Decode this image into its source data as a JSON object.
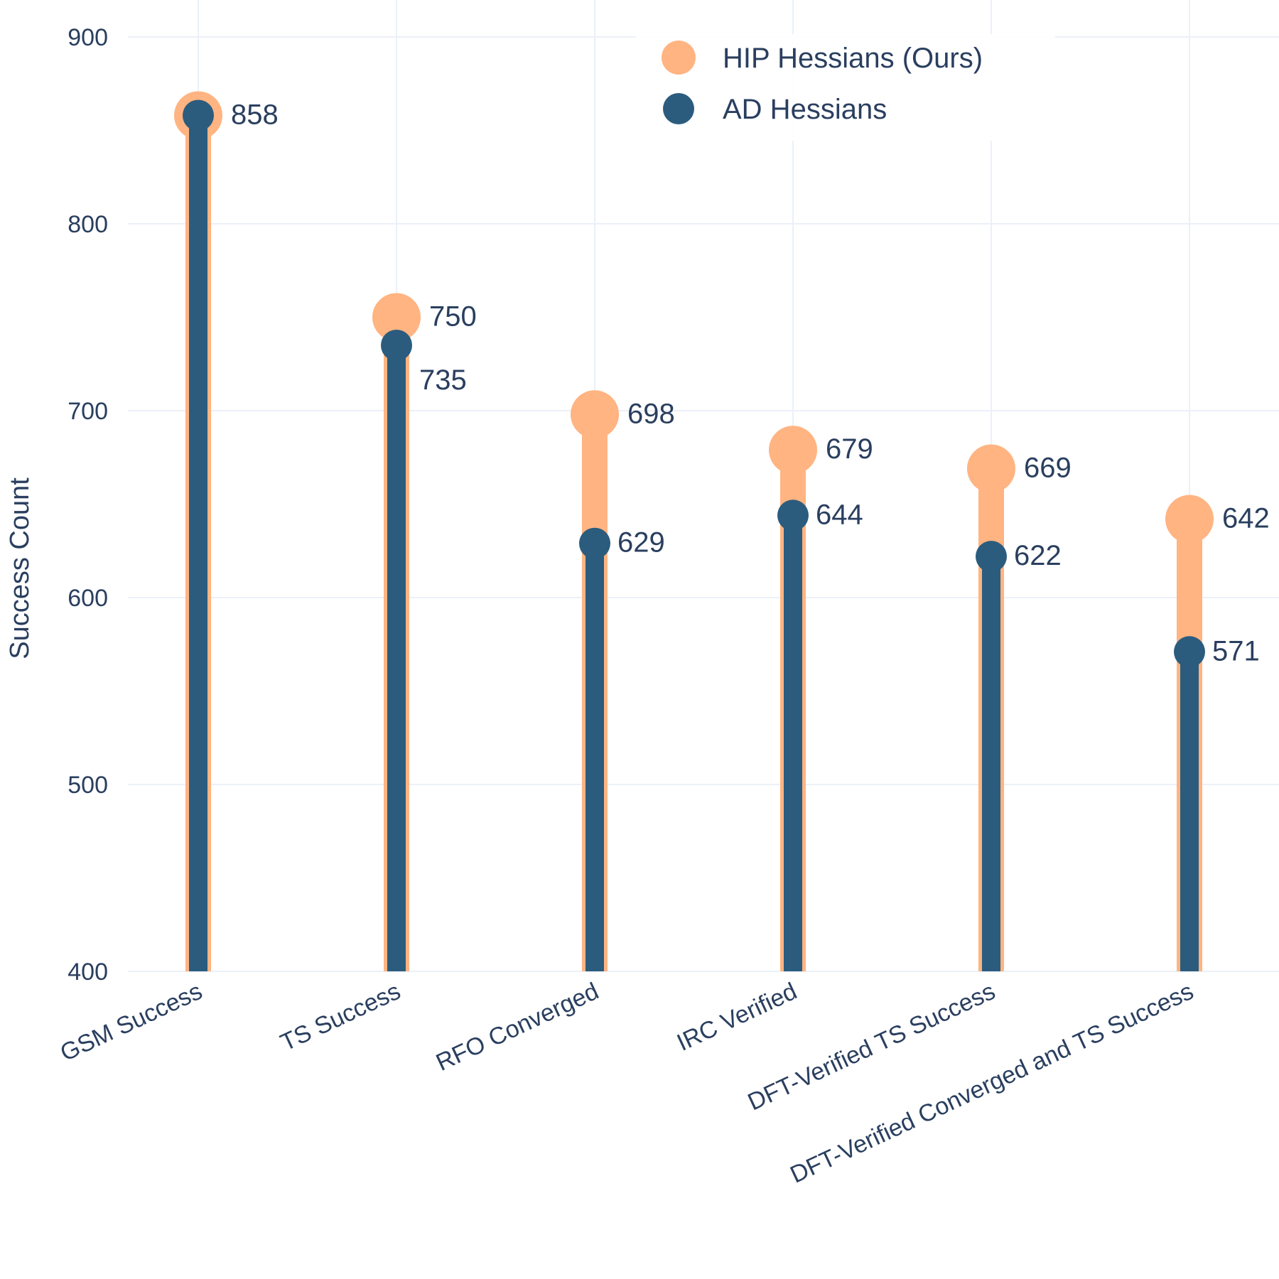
{
  "chart_data": {
    "type": "lollipop",
    "ylabel": "Success Count",
    "ylim": [
      400,
      900
    ],
    "yticks": [
      400,
      500,
      600,
      700,
      800,
      900
    ],
    "grid": true,
    "legend_position": "top-right",
    "categories": [
      "GSM Success",
      "TS Success",
      "RFO Converged",
      "IRC Verified",
      "DFT-Verified TS Success",
      "DFT-Verified Converged and TS Success"
    ],
    "series": [
      {
        "name": "HIP Hessians (Ours)",
        "color": "#ffb482",
        "values": [
          858,
          750,
          698,
          679,
          669,
          642
        ]
      },
      {
        "name": "AD Hessians",
        "color": "#2b5c7e",
        "values": [
          858,
          735,
          629,
          644,
          622,
          571
        ]
      }
    ]
  }
}
